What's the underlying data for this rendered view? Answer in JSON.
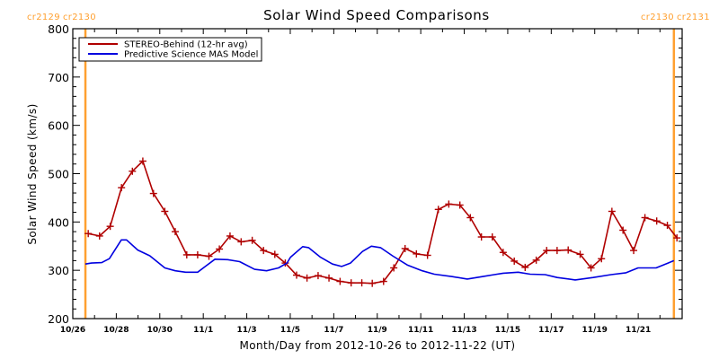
{
  "chart_data": {
    "type": "line",
    "title": "Solar Wind Speed Comparisons",
    "xlabel": "Month/Day from 2012-10-26 to 2012-11-22 (UT)",
    "ylabel": "Solar Wind Speed (km/s)",
    "x_units": "days since 2012-10-26 00:00 UT",
    "xlim": [
      0,
      28
    ],
    "ylim": [
      200,
      800
    ],
    "y_ticks": [
      200,
      300,
      400,
      500,
      600,
      700,
      800
    ],
    "y_minor_step": 20,
    "x_ticks": [
      {
        "day": 0,
        "label": "10/26"
      },
      {
        "day": 2,
        "label": "10/28"
      },
      {
        "day": 4,
        "label": "10/30"
      },
      {
        "day": 6,
        "label": "11/1"
      },
      {
        "day": 8,
        "label": "11/3"
      },
      {
        "day": 10,
        "label": "11/5"
      },
      {
        "day": 12,
        "label": "11/7"
      },
      {
        "day": 14,
        "label": "11/9"
      },
      {
        "day": 16,
        "label": "11/11"
      },
      {
        "day": 18,
        "label": "11/13"
      },
      {
        "day": 20,
        "label": "11/15"
      },
      {
        "day": 22,
        "label": "11/17"
      },
      {
        "day": 24,
        "label": "11/19"
      },
      {
        "day": 26,
        "label": "11/21"
      }
    ],
    "x_minor_step": 1,
    "grid": false,
    "legend_position": "top-left",
    "carrington_markers": [
      {
        "day": 0.58,
        "label_left": "cr2129",
        "label_right": "cr2130",
        "color": "#ffa030"
      },
      {
        "day": 27.64,
        "label_left": "cr2130",
        "label_right": "cr2131",
        "color": "#ffa030"
      }
    ],
    "series": [
      {
        "name": "STEREO-Behind (12-hr avg)",
        "color": "#b00000",
        "marker": "plus",
        "x": [
          0.71,
          1.23,
          1.72,
          2.24,
          2.74,
          3.22,
          3.71,
          4.23,
          4.71,
          5.24,
          5.74,
          6.26,
          6.74,
          7.23,
          7.74,
          8.25,
          8.77,
          9.29,
          9.77,
          10.29,
          10.77,
          11.28,
          11.78,
          12.29,
          12.8,
          13.29,
          13.77,
          14.29,
          14.76,
          15.28,
          15.8,
          16.31,
          16.81,
          17.29,
          17.8,
          18.28,
          18.79,
          19.29,
          19.79,
          20.3,
          20.8,
          21.31,
          21.79,
          22.27,
          22.78,
          23.33,
          23.83,
          24.31,
          24.79,
          25.3,
          25.79,
          26.31,
          26.85,
          27.34,
          27.78
        ],
        "y": [
          376,
          371,
          391,
          471,
          505,
          526,
          459,
          422,
          380,
          332,
          332,
          329,
          344,
          371,
          359,
          362,
          341,
          333,
          315,
          290,
          284,
          289,
          284,
          277,
          274,
          274,
          273,
          277,
          305,
          345,
          334,
          331,
          426,
          437,
          435,
          409,
          369,
          369,
          337,
          319,
          306,
          321,
          341,
          341,
          342,
          333,
          305,
          324,
          422,
          383,
          341,
          409,
          402,
          393,
          367
        ]
      },
      {
        "name": "Predictive Science MAS Model",
        "color": "#0000e0",
        "marker": "none",
        "x": [
          0.58,
          0.86,
          1.33,
          1.68,
          2.23,
          2.47,
          2.99,
          3.54,
          4.23,
          4.71,
          5.19,
          5.74,
          6.09,
          6.54,
          7.12,
          7.67,
          8.36,
          8.91,
          9.46,
          9.85,
          10.01,
          10.57,
          10.84,
          11.39,
          11.94,
          12.36,
          12.77,
          13.32,
          13.73,
          14.15,
          14.7,
          15.38,
          16.07,
          16.62,
          17.45,
          18.14,
          18.83,
          19.38,
          19.79,
          20.48,
          21.03,
          21.72,
          22.27,
          23.1,
          23.93,
          24.75,
          25.44,
          25.99,
          26.82,
          27.37,
          27.64
        ],
        "y": [
          313,
          315,
          316,
          324,
          363,
          363,
          342,
          330,
          305,
          299,
          296,
          296,
          308,
          323,
          322,
          318,
          302,
          299,
          305,
          315,
          327,
          349,
          347,
          327,
          313,
          308,
          315,
          339,
          350,
          347,
          330,
          311,
          299,
          292,
          287,
          282,
          287,
          291,
          294,
          296,
          292,
          291,
          285,
          280,
          285,
          291,
          295,
          305,
          305,
          315,
          320
        ]
      }
    ]
  }
}
